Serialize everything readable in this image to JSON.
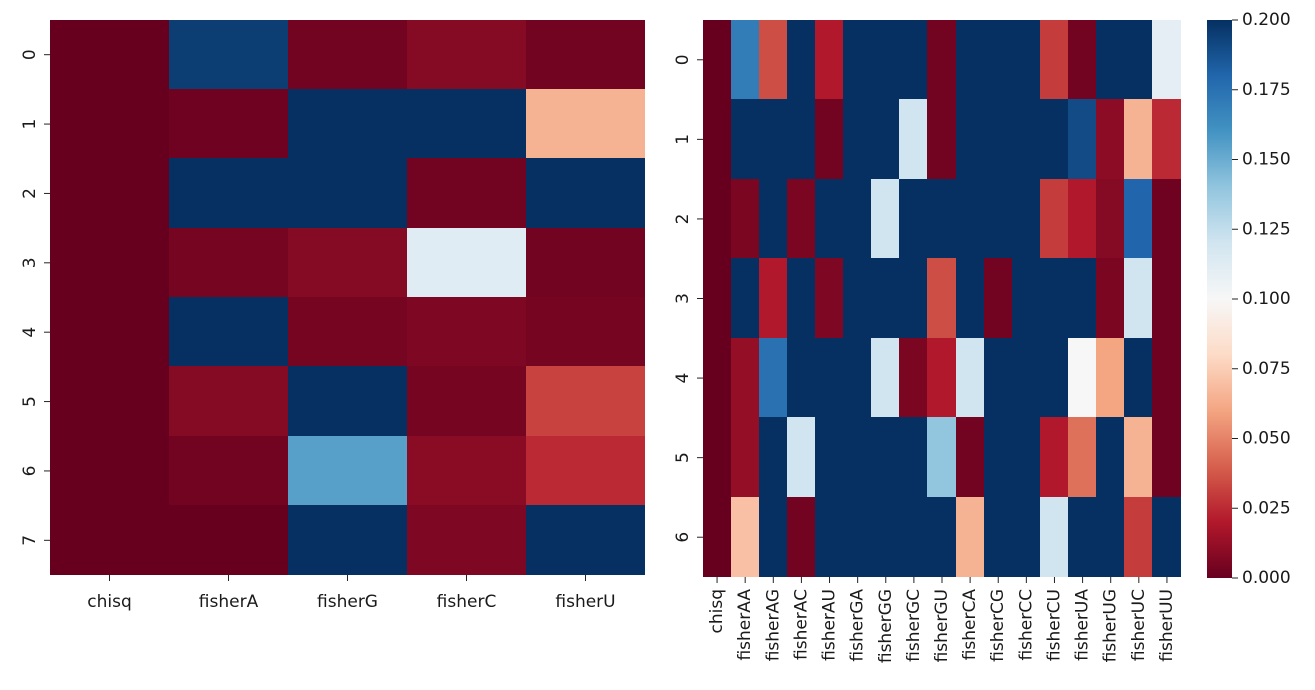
{
  "chart_data": [
    {
      "type": "heatmap",
      "x_categories": [
        "chisq",
        "fisherA",
        "fisherG",
        "fisherC",
        "fisherU"
      ],
      "y_categories": [
        "0",
        "1",
        "2",
        "3",
        "4",
        "5",
        "6",
        "7"
      ],
      "values": [
        [
          0.0,
          0.195,
          0.003,
          0.008,
          0.003
        ],
        [
          0.0,
          0.002,
          0.2,
          0.2,
          0.065
        ],
        [
          0.0,
          0.2,
          0.2,
          0.003,
          0.2
        ],
        [
          0.0,
          0.004,
          0.008,
          0.112,
          0.003
        ],
        [
          0.0,
          0.2,
          0.004,
          0.006,
          0.004
        ],
        [
          0.0,
          0.008,
          0.2,
          0.004,
          0.032
        ],
        [
          0.0,
          0.003,
          0.155,
          0.009,
          0.025
        ],
        [
          0.0,
          0.0,
          0.2,
          0.006,
          0.2
        ]
      ],
      "vmin": 0.0,
      "vmax": 0.2
    },
    {
      "type": "heatmap",
      "x_categories": [
        "chisq",
        "fisherAA",
        "fisherAG",
        "fisherAC",
        "fisherAU",
        "fisherGA",
        "fisherGG",
        "fisherGC",
        "fisherGU",
        "fisherCA",
        "fisherCG",
        "fisherCC",
        "fisherCU",
        "fisherUA",
        "fisherUG",
        "fisherUC",
        "fisherUU"
      ],
      "y_categories": [
        "0",
        "1",
        "2",
        "3",
        "4",
        "5",
        "6"
      ],
      "values": [
        [
          0.0,
          0.17,
          0.035,
          0.2,
          0.02,
          0.2,
          0.2,
          0.2,
          0.003,
          0.2,
          0.2,
          0.2,
          0.03,
          0.003,
          0.2,
          0.2,
          0.11
        ],
        [
          0.0,
          0.2,
          0.2,
          0.2,
          0.003,
          0.2,
          0.2,
          0.12,
          0.003,
          0.2,
          0.2,
          0.2,
          0.2,
          0.19,
          0.01,
          0.065,
          0.025
        ],
        [
          0.0,
          0.005,
          0.2,
          0.005,
          0.2,
          0.2,
          0.12,
          0.2,
          0.2,
          0.2,
          0.2,
          0.2,
          0.03,
          0.02,
          0.008,
          0.18,
          0.002
        ],
        [
          0.0,
          0.2,
          0.02,
          0.2,
          0.006,
          0.2,
          0.2,
          0.2,
          0.035,
          0.2,
          0.003,
          0.2,
          0.2,
          0.2,
          0.005,
          0.12,
          0.002
        ],
        [
          0.0,
          0.012,
          0.175,
          0.2,
          0.2,
          0.2,
          0.12,
          0.005,
          0.02,
          0.12,
          0.2,
          0.2,
          0.2,
          0.1,
          0.06,
          0.2,
          0.002
        ],
        [
          0.0,
          0.012,
          0.2,
          0.12,
          0.2,
          0.2,
          0.2,
          0.2,
          0.14,
          0.003,
          0.2,
          0.2,
          0.02,
          0.045,
          0.2,
          0.065,
          0.002
        ],
        [
          0.0,
          0.07,
          0.2,
          0.003,
          0.2,
          0.2,
          0.2,
          0.2,
          0.2,
          0.065,
          0.2,
          0.2,
          0.12,
          0.2,
          0.2,
          0.03,
          0.2
        ]
      ],
      "vmin": 0.0,
      "vmax": 0.2,
      "colorbar_ticks": [
        "0.000",
        "0.025",
        "0.050",
        "0.075",
        "0.100",
        "0.125",
        "0.150",
        "0.175",
        "0.200"
      ],
      "colorbar_position": "right"
    }
  ],
  "colormap": [
    "#67001f",
    "#b2182b",
    "#d6604d",
    "#f4a582",
    "#fddbc7",
    "#f7f7f7",
    "#d1e5f0",
    "#92c5de",
    "#4393c3",
    "#2166ac",
    "#053061"
  ]
}
